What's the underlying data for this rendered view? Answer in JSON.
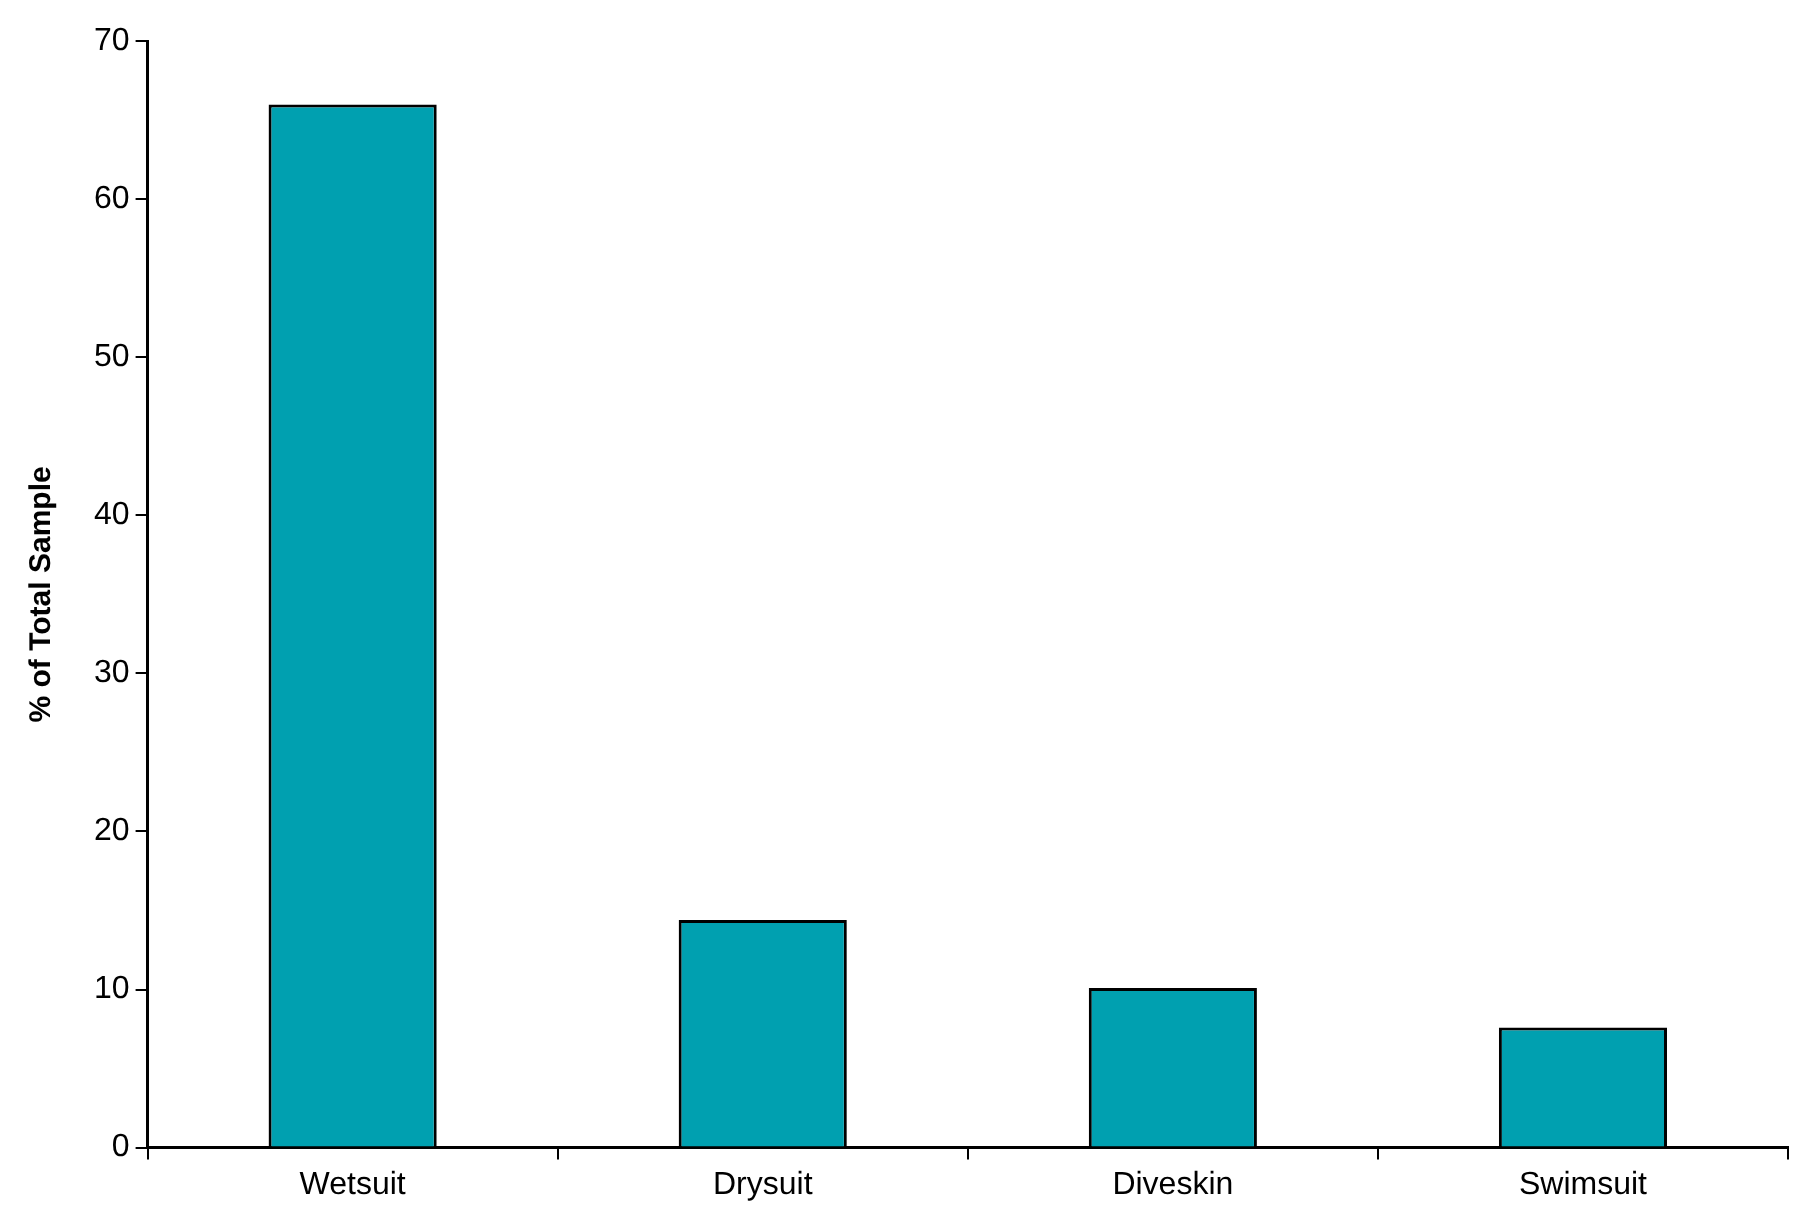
{
  "chart_data": {
    "type": "bar",
    "ylabel": "% of Total Sample",
    "categories": [
      "Wetsuit",
      "Drysuit",
      "Diveskin",
      "Swimsuit"
    ],
    "values": [
      66,
      14.4,
      10.1,
      7.6
    ],
    "color": "#00a0b0",
    "ylim": [
      0,
      70
    ],
    "yticks": [
      0,
      10,
      20,
      30,
      40,
      50,
      60,
      70
    ],
    "grid": false,
    "legend": false
  }
}
